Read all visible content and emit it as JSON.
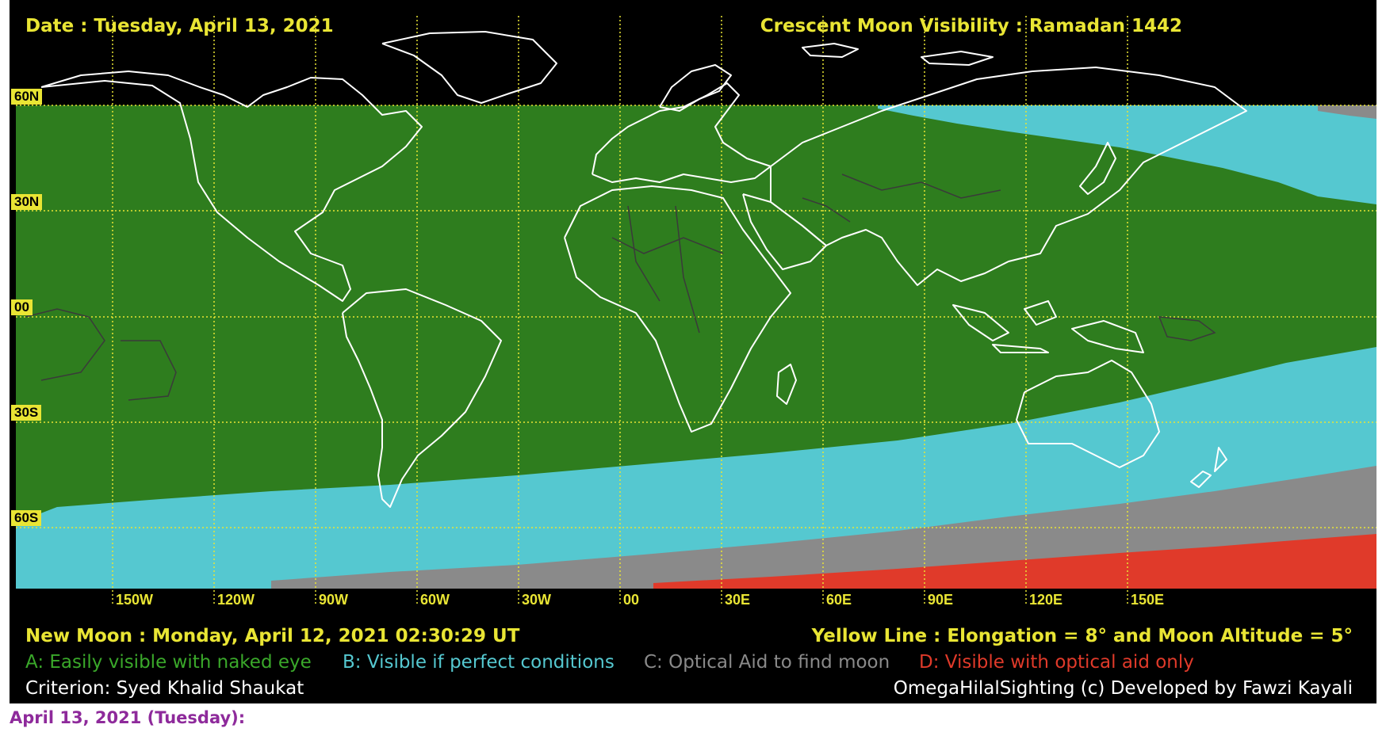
{
  "header": {
    "date_label": "Date : Tuesday, April 13, 2021",
    "title": "Crescent Moon Visibility : Ramadan  1442"
  },
  "latitude_labels": [
    "60N",
    "30N",
    "00",
    "30S",
    "60S"
  ],
  "longitude_labels": [
    "150W",
    "120W",
    "90W",
    "60W",
    "30W",
    "00",
    "30E",
    "60E",
    "90E",
    "120E",
    "150E"
  ],
  "footer": {
    "new_moon": "New Moon : Monday, April 12, 2021  02:30:29  UT",
    "yellow_line": "Yellow Line :  Elongation = 8°  and Moon Altitude = 5°",
    "legend": [
      {
        "key": "A",
        "text": "A: Easily visible with naked eye",
        "color": "#2e7d1e"
      },
      {
        "key": "B",
        "text": "B: Visible if perfect conditions",
        "color": "#55c8d0"
      },
      {
        "key": "C",
        "text": "C: Optical Aid to find moon",
        "color": "#8a8a8a"
      },
      {
        "key": "D",
        "text": "D: Visible with optical aid only",
        "color": "#e03a2a"
      }
    ],
    "criterion": "Criterion: Syed Khalid Shaukat",
    "credit": "OmegaHilalSighting  (c)  Developed by Fawzi Kayali"
  },
  "caption": "April 13, 2021 (Tuesday):",
  "colors": {
    "background": "#000000",
    "grid": "#e9e534",
    "coastline": "#ffffff",
    "borders": "#3a3a3a"
  }
}
